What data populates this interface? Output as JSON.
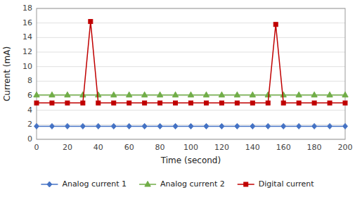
{
  "chart_data": {
    "type": "line",
    "xlabel": "Time (second)",
    "ylabel": "Current (mA)",
    "xlim": [
      0,
      200
    ],
    "ylim": [
      0,
      18
    ],
    "xticks": [
      0,
      20,
      40,
      60,
      80,
      100,
      120,
      140,
      160,
      180,
      200
    ],
    "yticks": [
      0,
      2,
      4,
      6,
      8,
      10,
      12,
      14,
      16,
      18
    ],
    "grid": true,
    "legend": "bottom",
    "series": [
      {
        "name": "Analog current 1",
        "color": "#4472c4",
        "marker": "diamond",
        "x": [
          0,
          10,
          20,
          30,
          40,
          50,
          60,
          70,
          80,
          90,
          100,
          110,
          120,
          130,
          140,
          150,
          160,
          170,
          180,
          190,
          200
        ],
        "values": [
          1.8,
          1.8,
          1.8,
          1.8,
          1.8,
          1.8,
          1.8,
          1.8,
          1.8,
          1.8,
          1.8,
          1.8,
          1.8,
          1.8,
          1.8,
          1.8,
          1.8,
          1.8,
          1.8,
          1.8,
          1.8
        ]
      },
      {
        "name": "Analog current 2",
        "color": "#70ad47",
        "marker": "triangle",
        "x": [
          0,
          10,
          20,
          30,
          40,
          50,
          60,
          70,
          80,
          90,
          100,
          110,
          120,
          130,
          140,
          150,
          160,
          170,
          180,
          190,
          200
        ],
        "values": [
          6.1,
          6.1,
          6.1,
          6.1,
          6.1,
          6.1,
          6.1,
          6.1,
          6.1,
          6.1,
          6.1,
          6.1,
          6.1,
          6.1,
          6.1,
          6.1,
          6.1,
          6.1,
          6.1,
          6.1,
          6.1
        ]
      },
      {
        "name": "Digital current",
        "color": "#c00000",
        "marker": "square",
        "x": [
          0,
          10,
          20,
          30,
          35,
          40,
          50,
          60,
          70,
          80,
          90,
          100,
          110,
          120,
          130,
          140,
          150,
          155,
          160,
          170,
          180,
          190,
          200
        ],
        "values": [
          5.0,
          5.0,
          5.0,
          5.0,
          16.2,
          5.0,
          5.0,
          5.0,
          5.0,
          5.0,
          5.0,
          5.0,
          5.0,
          5.0,
          5.0,
          5.0,
          5.0,
          15.8,
          5.0,
          5.0,
          5.0,
          5.0,
          5.0
        ]
      }
    ]
  }
}
